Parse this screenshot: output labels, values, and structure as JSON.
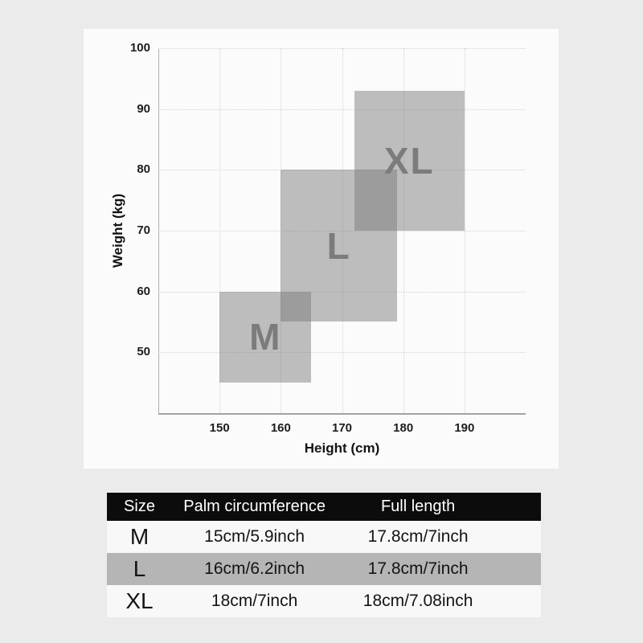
{
  "colors": {
    "page_bg": "#ebebeb",
    "panel_bg": "#fbfbfb",
    "grid": "#d3d3d3",
    "axis": "#a3a3a3",
    "box_fill": "rgba(122,122,122,0.48)",
    "box_label": "#7c7c7c",
    "tick_text": "#1d1d1d",
    "table_header_bg": "#0c0c0c",
    "table_header_text": "#ffffff",
    "table_row_bg": "#f8f8f8",
    "table_row_alt_bg": "#b5b5b5"
  },
  "chart_data": [
    {
      "type": "area",
      "subtype": "size-region-boxes",
      "title": "",
      "xlabel": "Height (cm)",
      "ylabel": "Weight (kg)",
      "xlim": [
        140,
        200
      ],
      "ylim": [
        40,
        100
      ],
      "x_ticks": [
        150,
        160,
        170,
        180,
        190
      ],
      "y_ticks": [
        100,
        90,
        80,
        70,
        60,
        50
      ],
      "grid": true,
      "legend": "none",
      "series": [
        {
          "name": "M",
          "height_range_cm": [
            150,
            165
          ],
          "weight_range_kg": [
            45,
            60
          ]
        },
        {
          "name": "L",
          "height_range_cm": [
            160,
            179
          ],
          "weight_range_kg": [
            55,
            80
          ]
        },
        {
          "name": "XL",
          "height_range_cm": [
            172,
            190
          ],
          "weight_range_kg": [
            70,
            93
          ]
        }
      ]
    },
    {
      "type": "table",
      "headers": [
        "Size",
        "Palm circumference",
        "Full length"
      ],
      "rows": [
        [
          "M",
          "15cm/5.9inch",
          "17.8cm/7inch"
        ],
        [
          "L",
          "16cm/6.2inch",
          "17.8cm/7inch"
        ],
        [
          "XL",
          "18cm/7inch",
          "18cm/7.08inch"
        ]
      ]
    }
  ]
}
